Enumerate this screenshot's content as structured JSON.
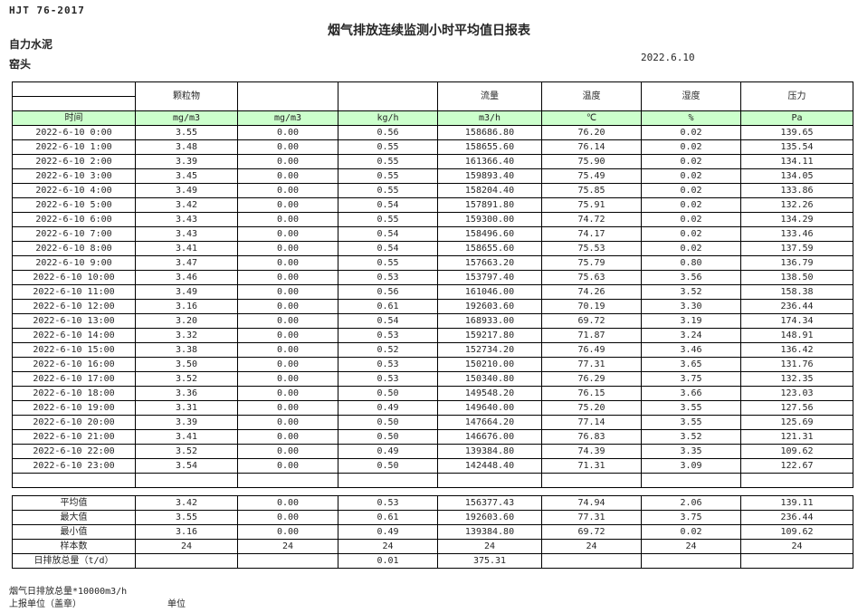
{
  "header": {
    "doc_code": "HJT  76-2017",
    "title": "烟气排放连续监测小时平均值日报表",
    "company": "自力水泥",
    "monitoring_point": "窑头",
    "date": "2022.6.10"
  },
  "table": {
    "header_groups": [
      "",
      "颗粒物",
      "",
      "",
      "流量",
      "温度",
      "湿度",
      "压力"
    ],
    "header_units": [
      "时间",
      "mg/m3",
      "mg/m3",
      "kg/h",
      "m3/h",
      "℃",
      "%",
      "Pa"
    ],
    "rows": [
      [
        "2022-6-10 0:00",
        "3.55",
        "0.00",
        "0.56",
        "158686.80",
        "76.20",
        "0.02",
        "139.65"
      ],
      [
        "2022-6-10 1:00",
        "3.48",
        "0.00",
        "0.55",
        "158655.60",
        "76.14",
        "0.02",
        "135.54"
      ],
      [
        "2022-6-10 2:00",
        "3.39",
        "0.00",
        "0.55",
        "161366.40",
        "75.90",
        "0.02",
        "134.11"
      ],
      [
        "2022-6-10 3:00",
        "3.45",
        "0.00",
        "0.55",
        "159893.40",
        "75.49",
        "0.02",
        "134.05"
      ],
      [
        "2022-6-10 4:00",
        "3.49",
        "0.00",
        "0.55",
        "158204.40",
        "75.85",
        "0.02",
        "133.86"
      ],
      [
        "2022-6-10 5:00",
        "3.42",
        "0.00",
        "0.54",
        "157891.80",
        "75.91",
        "0.02",
        "132.26"
      ],
      [
        "2022-6-10 6:00",
        "3.43",
        "0.00",
        "0.55",
        "159300.00",
        "74.72",
        "0.02",
        "134.29"
      ],
      [
        "2022-6-10 7:00",
        "3.43",
        "0.00",
        "0.54",
        "158496.60",
        "74.17",
        "0.02",
        "133.46"
      ],
      [
        "2022-6-10 8:00",
        "3.41",
        "0.00",
        "0.54",
        "158655.60",
        "75.53",
        "0.02",
        "137.59"
      ],
      [
        "2022-6-10 9:00",
        "3.47",
        "0.00",
        "0.55",
        "157663.20",
        "75.79",
        "0.80",
        "136.79"
      ],
      [
        "2022-6-10 10:00",
        "3.46",
        "0.00",
        "0.53",
        "153797.40",
        "75.63",
        "3.56",
        "138.50"
      ],
      [
        "2022-6-10 11:00",
        "3.49",
        "0.00",
        "0.56",
        "161046.00",
        "74.26",
        "3.52",
        "158.38"
      ],
      [
        "2022-6-10 12:00",
        "3.16",
        "0.00",
        "0.61",
        "192603.60",
        "70.19",
        "3.30",
        "236.44"
      ],
      [
        "2022-6-10 13:00",
        "3.20",
        "0.00",
        "0.54",
        "168933.00",
        "69.72",
        "3.19",
        "174.34"
      ],
      [
        "2022-6-10 14:00",
        "3.32",
        "0.00",
        "0.53",
        "159217.80",
        "71.87",
        "3.24",
        "148.91"
      ],
      [
        "2022-6-10 15:00",
        "3.38",
        "0.00",
        "0.52",
        "152734.20",
        "76.49",
        "3.46",
        "136.42"
      ],
      [
        "2022-6-10 16:00",
        "3.50",
        "0.00",
        "0.53",
        "150210.00",
        "77.31",
        "3.65",
        "131.76"
      ],
      [
        "2022-6-10 17:00",
        "3.52",
        "0.00",
        "0.53",
        "150340.80",
        "76.29",
        "3.75",
        "132.35"
      ],
      [
        "2022-6-10 18:00",
        "3.36",
        "0.00",
        "0.50",
        "149548.20",
        "76.15",
        "3.66",
        "123.03"
      ],
      [
        "2022-6-10 19:00",
        "3.31",
        "0.00",
        "0.49",
        "149640.00",
        "75.20",
        "3.55",
        "127.56"
      ],
      [
        "2022-6-10 20:00",
        "3.39",
        "0.00",
        "0.50",
        "147664.20",
        "77.14",
        "3.55",
        "125.69"
      ],
      [
        "2022-6-10 21:00",
        "3.41",
        "0.00",
        "0.50",
        "146676.00",
        "76.83",
        "3.52",
        "121.31"
      ],
      [
        "2022-6-10 22:00",
        "3.52",
        "0.00",
        "0.49",
        "139384.80",
        "74.39",
        "3.35",
        "109.62"
      ],
      [
        "2022-6-10 23:00",
        "3.54",
        "0.00",
        "0.50",
        "142448.40",
        "71.31",
        "3.09",
        "122.67"
      ]
    ],
    "summary": [
      {
        "label": "平均值",
        "values": [
          "3.42",
          "0.00",
          "0.53",
          "156377.43",
          "74.94",
          "2.06",
          "139.11"
        ]
      },
      {
        "label": "最大值",
        "values": [
          "3.55",
          "0.00",
          "0.61",
          "192603.60",
          "77.31",
          "3.75",
          "236.44"
        ]
      },
      {
        "label": "最小值",
        "values": [
          "3.16",
          "0.00",
          "0.49",
          "139384.80",
          "69.72",
          "0.02",
          "109.62"
        ]
      },
      {
        "label": "样本数",
        "values": [
          "24",
          "24",
          "24",
          "24",
          "24",
          "24",
          "24"
        ]
      },
      {
        "label": "日排放总量（t/d）",
        "values": [
          "",
          "",
          "0.01",
          "375.31",
          "",
          "",
          ""
        ]
      }
    ]
  },
  "footer": {
    "note": "烟气日排放总量*10000m3/h",
    "report_unit_label": "上报单位（盖章）",
    "unit_label": "单位"
  },
  "colors": {
    "header_green": "#ccffcc"
  }
}
